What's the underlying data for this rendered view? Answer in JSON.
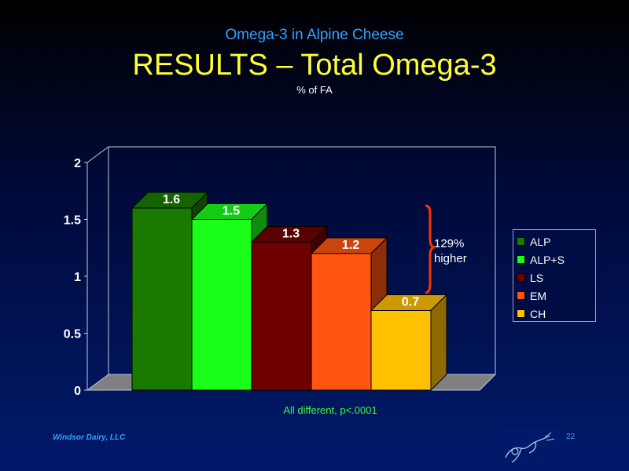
{
  "header": {
    "subtitle": "Omega-3 in Alpine Cheese",
    "title": "RESULTS – Total Omega-3",
    "unit": "% of FA"
  },
  "footer": {
    "company": "Windsor Dairy, LLC",
    "page_number": "22"
  },
  "colors": {
    "background": "#000a3a",
    "subtitle": "#33a3ff",
    "title": "#ffff33",
    "footnote": "#33ff33",
    "brace": "#ff3300"
  },
  "chart_data": {
    "type": "bar",
    "categories": [
      "ALP",
      "ALP+S",
      "LS",
      "EM",
      "CH"
    ],
    "values": [
      1.6,
      1.5,
      1.3,
      1.2,
      0.7
    ],
    "data_labels": [
      "1.6",
      "1.5",
      "1.3",
      "1.2",
      "0.7"
    ],
    "series_colors": [
      "#1a7a00",
      "#1aff1a",
      "#700000",
      "#ff5510",
      "#ffc000"
    ],
    "ylim": [
      0,
      2
    ],
    "yticks": [
      "0",
      "0.5",
      "1",
      "1.5",
      "2"
    ],
    "legend": {
      "placement": "right",
      "entries": [
        "ALP",
        "ALP+S",
        "LS",
        "EM",
        "CH"
      ]
    },
    "annotation": {
      "text_line1": "129%",
      "text_line2": "higher"
    },
    "footnote": "All different, p<.0001",
    "grid": false,
    "style": "3d"
  }
}
